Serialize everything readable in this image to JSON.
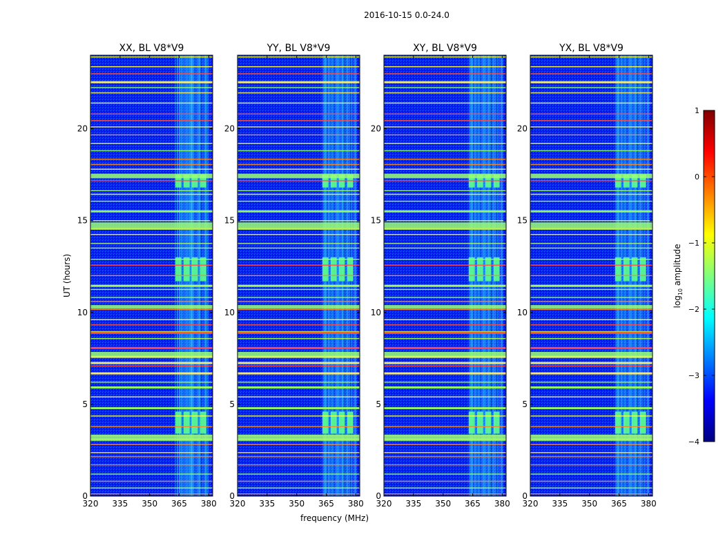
{
  "figure": {
    "suptitle": "2016-10-15 0.0-24.0",
    "colorbar_label_base": "log",
    "colorbar_label_sub": "10",
    "colorbar_label_rest": " amplitude"
  },
  "chart_data": [
    {
      "type": "heatmap",
      "title": "XX, BL V8*V9",
      "xlabel": "",
      "ylabel": "UT (hours)",
      "xlim": [
        320,
        382
      ],
      "ylim": [
        0,
        24
      ],
      "xticks": [
        320,
        335,
        350,
        365,
        380
      ],
      "yticks": [
        0,
        5,
        10,
        15,
        20
      ],
      "color_scale": "log10 amplitude, jet colormap",
      "rfi_band_mhz": [
        363,
        380
      ],
      "high_activity_ut_ranges": [
        [
          3.4,
          4.6
        ],
        [
          11.7,
          13.0
        ],
        [
          16.8,
          17.5
        ]
      ]
    },
    {
      "type": "heatmap",
      "title": "YY, BL V8*V9",
      "xlabel": "frequency (MHz)",
      "ylabel": "",
      "xlim": [
        320,
        382
      ],
      "ylim": [
        0,
        24
      ],
      "xticks": [
        320,
        335,
        350,
        365,
        380
      ],
      "yticks": [
        0,
        5,
        10,
        15,
        20
      ],
      "color_scale": "log10 amplitude, jet colormap",
      "rfi_band_mhz": [
        363,
        380
      ],
      "high_activity_ut_ranges": [
        [
          3.4,
          4.6
        ],
        [
          11.7,
          13.0
        ],
        [
          16.8,
          17.5
        ]
      ]
    },
    {
      "type": "heatmap",
      "title": "XY, BL V8*V9",
      "xlabel": "",
      "ylabel": "",
      "xlim": [
        320,
        382
      ],
      "ylim": [
        0,
        24
      ],
      "xticks": [
        320,
        335,
        350,
        365,
        380
      ],
      "yticks": [
        0,
        5,
        10,
        15,
        20
      ],
      "color_scale": "log10 amplitude, jet colormap",
      "rfi_band_mhz": [
        363,
        380
      ],
      "high_activity_ut_ranges": [
        [
          3.4,
          4.6
        ],
        [
          11.7,
          13.0
        ],
        [
          16.8,
          17.5
        ]
      ]
    },
    {
      "type": "heatmap",
      "title": "YX, BL V8*V9",
      "xlabel": "",
      "ylabel": "",
      "xlim": [
        320,
        382
      ],
      "ylim": [
        0,
        24
      ],
      "xticks": [
        320,
        335,
        350,
        365,
        380
      ],
      "yticks": [
        0,
        5,
        10,
        15,
        20
      ],
      "color_scale": "log10 amplitude, jet colormap",
      "rfi_band_mhz": [
        363,
        380
      ],
      "high_activity_ut_ranges": [
        [
          3.4,
          4.6
        ],
        [
          11.7,
          13.0
        ],
        [
          16.8,
          17.5
        ]
      ]
    }
  ],
  "colorbar": {
    "min": -4,
    "max": 1,
    "ticks": [
      -4,
      -3,
      -2,
      -1,
      0,
      1
    ],
    "tick_labels": [
      "−4",
      "−3",
      "−2",
      "−1",
      "0",
      "1"
    ],
    "colormap_stops": [
      "#00007f",
      "#0000ff",
      "#007fff",
      "#00ffff",
      "#7fff7f",
      "#ffff00",
      "#ff7f00",
      "#ff0000",
      "#7f0000"
    ]
  }
}
